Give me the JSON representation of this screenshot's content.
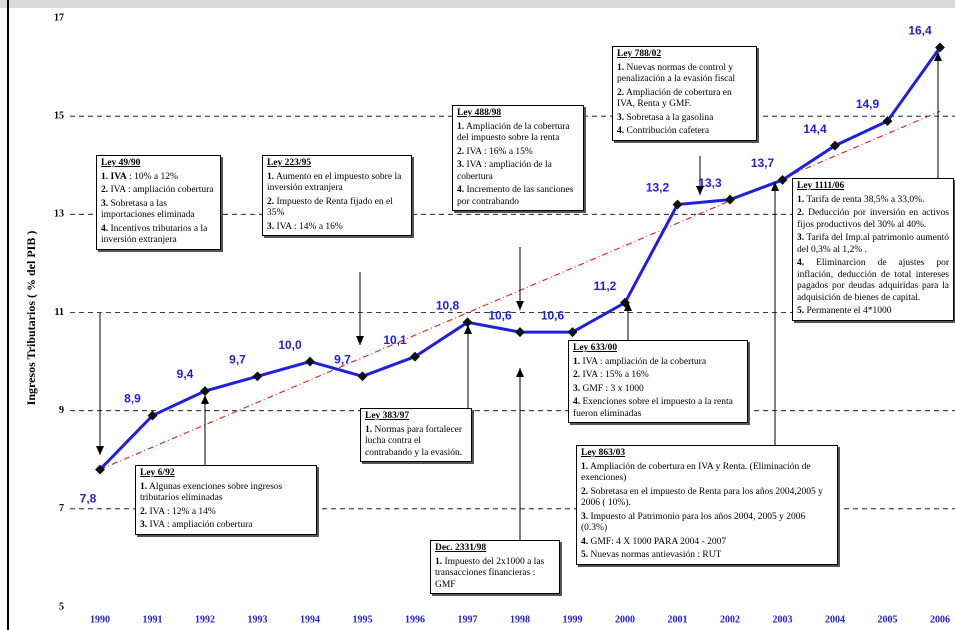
{
  "chart_data": {
    "type": "line",
    "y_label": "Ingresos Tributarios   ( % del PIB )",
    "categories": [
      "1990",
      "1991",
      "1992",
      "1993",
      "1994",
      "1995",
      "1996",
      "1997",
      "1998",
      "1999",
      "2000",
      "2001",
      "2002",
      "2003",
      "2004",
      "2005",
      "2006"
    ],
    "series": [
      {
        "color": "#1f1fe0",
        "values": [
          7.8,
          8.9,
          9.4,
          9.7,
          10.0,
          9.7,
          10.1,
          10.8,
          10.6,
          10.6,
          11.2,
          13.2,
          13.3,
          13.7,
          14.4,
          14.9,
          16.4
        ],
        "value_labels": [
          "7,8",
          "8,9",
          "9,4",
          "9,7",
          "10,0",
          "9,7",
          "10,1",
          "10,8",
          "10,6",
          "10,6",
          "11,2",
          "13,2",
          "13,3",
          "13,7",
          "14,4",
          "14,9",
          "16,4"
        ]
      }
    ],
    "trend": {
      "color": "#e0301e",
      "values": [
        7.8,
        15.1
      ]
    },
    "ylim": [
      5,
      17
    ],
    "yticks": [
      5,
      7,
      9,
      11,
      13,
      15,
      17
    ],
    "grid": true,
    "annotations": [
      {
        "title": "Ley 49/90",
        "items": [
          {
            "n": "1. IVA",
            "t": " : 10% a 12%"
          },
          {
            "n": "2.",
            "t": " IVA : ampliación cobertura"
          },
          {
            "n": "3.",
            "t": " Sobretasa a las importaciones eliminada"
          },
          {
            "n": "4.",
            "t": " Incentivos tributarios a la inversión extranjera"
          }
        ]
      },
      {
        "title": "Ley 223/95",
        "items": [
          {
            "n": "1.",
            "t": " Aumento en el impuesto sobre la inversión extranjera"
          },
          {
            "n": "2.",
            "t": " Impuesto de Renta fijado en el 35%"
          },
          {
            "n": "3.",
            "t": " IVA : 14% a 16%"
          }
        ]
      },
      {
        "title": "Ley 488/98",
        "items": [
          {
            "n": "1.",
            "t": " Ampliación de la cobertura del impuesto sobre la renta"
          },
          {
            "n": "2.",
            "t": " IVA : 16% a 15%"
          },
          {
            "n": "3.",
            "t": " IVA : ampliación de la cobertura"
          },
          {
            "n": "4.",
            "t": " Incremento de las sanciones por contrabando"
          }
        ]
      },
      {
        "title": "Ley 788/02",
        "items": [
          {
            "n": "1.",
            "t": " Nuevas normas de control y penalización a la evasión fiscal"
          },
          {
            "n": "2.",
            "t": " Ampliación de cobertura en IVA, Renta y GMF."
          },
          {
            "n": "3.",
            "t": " Sobretasa a la gasolina"
          },
          {
            "n": "4.",
            "t": " Contribución cafetera"
          }
        ]
      },
      {
        "title": "Ley  1111/06",
        "items": [
          {
            "n": "1.",
            "t": " Tarifa de renta 38,5% a 33,0%."
          },
          {
            "n": "2.",
            "t": " Deducción por inversión en activos fijos productivos del 30% al 40%."
          },
          {
            "n": "3.",
            "t": " Tarifa del Imp.al patrimonio aumentó del 0,3% al 1,2% ."
          },
          {
            "n": "4.",
            "t": " Eliminarcion de ajustes por inflación, deducción de total intereses pagados por deudas adquiridas para la adquisición de bienes de capital."
          },
          {
            "n": "5.",
            "t": " Permanente el 4*1000"
          }
        ]
      },
      {
        "title": "Ley 6/92",
        "items": [
          {
            "n": "1.",
            "t": " Algunas exenciones sobre ingresos tributarios eliminadas"
          },
          {
            "n": "2.",
            "t": " IVA : 12% a 14%"
          },
          {
            "n": "3.",
            "t": " IVA : ampliación cobertura"
          }
        ]
      },
      {
        "title": "Ley 383/97",
        "items": [
          {
            "n": "1.",
            "t": " Normas para fortalecer lucha contra el contrabando y la evasión."
          }
        ]
      },
      {
        "title": "Dec. 2331/98",
        "items": [
          {
            "n": "1.",
            "t": " Impuesto del 2x1000 a las transacciones financieras : GMF"
          }
        ]
      },
      {
        "title": "Ley 633/00",
        "items": [
          {
            "n": "1.",
            "t": " IVA : ampliación de la cobertura"
          },
          {
            "n": "2.",
            "t": " IVA : 15% a 16%"
          },
          {
            "n": "3.",
            "t": " GMF : 3 x 1000"
          },
          {
            "n": "4.",
            "t": " Exenciones sobre el impuesto a la renta fueron eliminadas"
          }
        ]
      },
      {
        "title": "Ley 863/03",
        "items": [
          {
            "n": "1.",
            "t": " Ampliación de cobertura en IVA y Renta. (Eliminación de exenciones)"
          },
          {
            "n": "2.",
            "t": " Sobretasa en el impuesto de Renta para los años 2004,2005 y 2006 ( 10%)."
          },
          {
            "n": "3.",
            "t": " Impuesto al Patrimonio para los años 2004, 2005 y 2006 (0.3%)"
          },
          {
            "n": "4.",
            "t": " GMF: 4 X 1000 PARA 2004 - 2007"
          },
          {
            "n": "5.",
            "t": " Nuevas normas antievasión : RUT"
          }
        ]
      }
    ]
  }
}
